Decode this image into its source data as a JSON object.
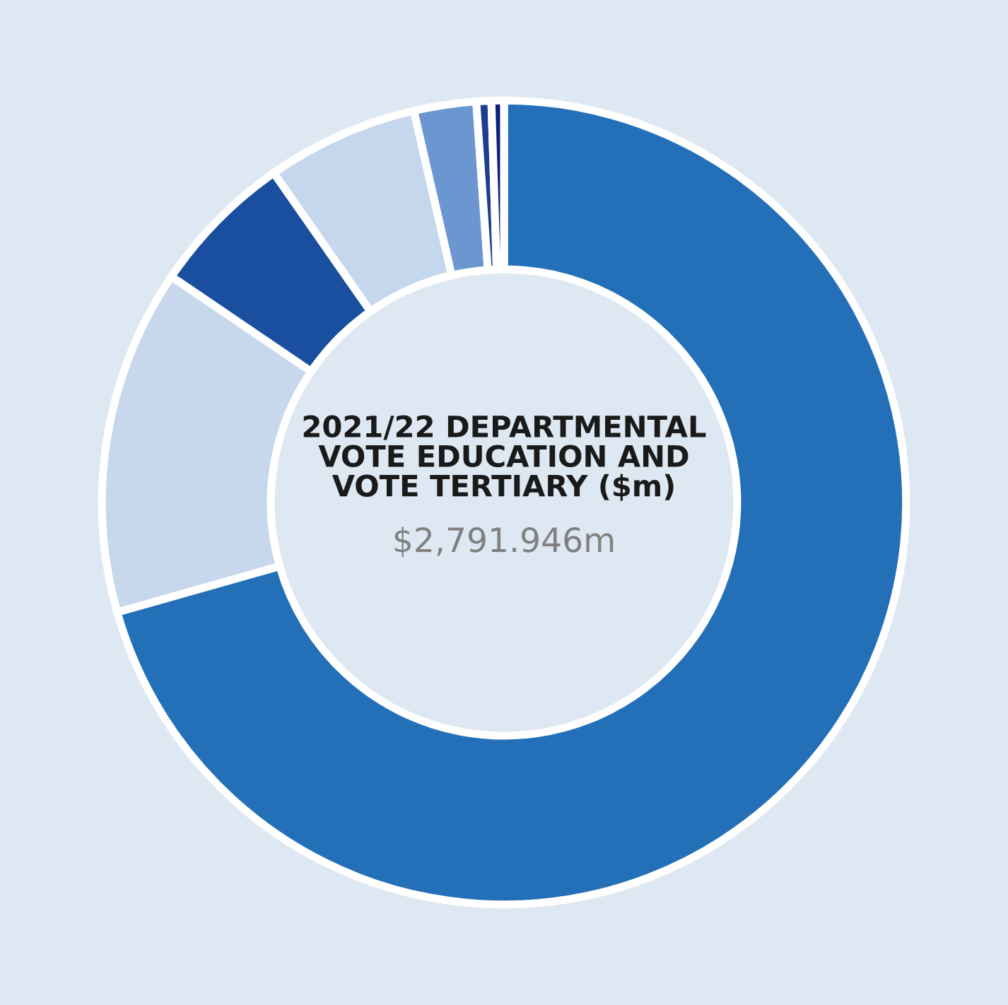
{
  "chart_data": {
    "type": "donut",
    "title": "2021/22 DEPARTMENTAL\nVOTE EDUCATION AND\nVOTE TERTIARY ($m)",
    "subtitle": "$2,791.946m",
    "categories": [
      null,
      null,
      null,
      null,
      null,
      null,
      null
    ],
    "values": [
      70.6,
      13.9,
      5.8,
      6.1,
      2.5,
      0.6,
      0.5
    ],
    "colors": [
      "#2370b8",
      "#c8d8ec",
      "#1a4fa0",
      "#c5d7ec",
      "#6b96d0",
      "#1d3d8f",
      "#0d1f7a"
    ],
    "legend": false
  }
}
